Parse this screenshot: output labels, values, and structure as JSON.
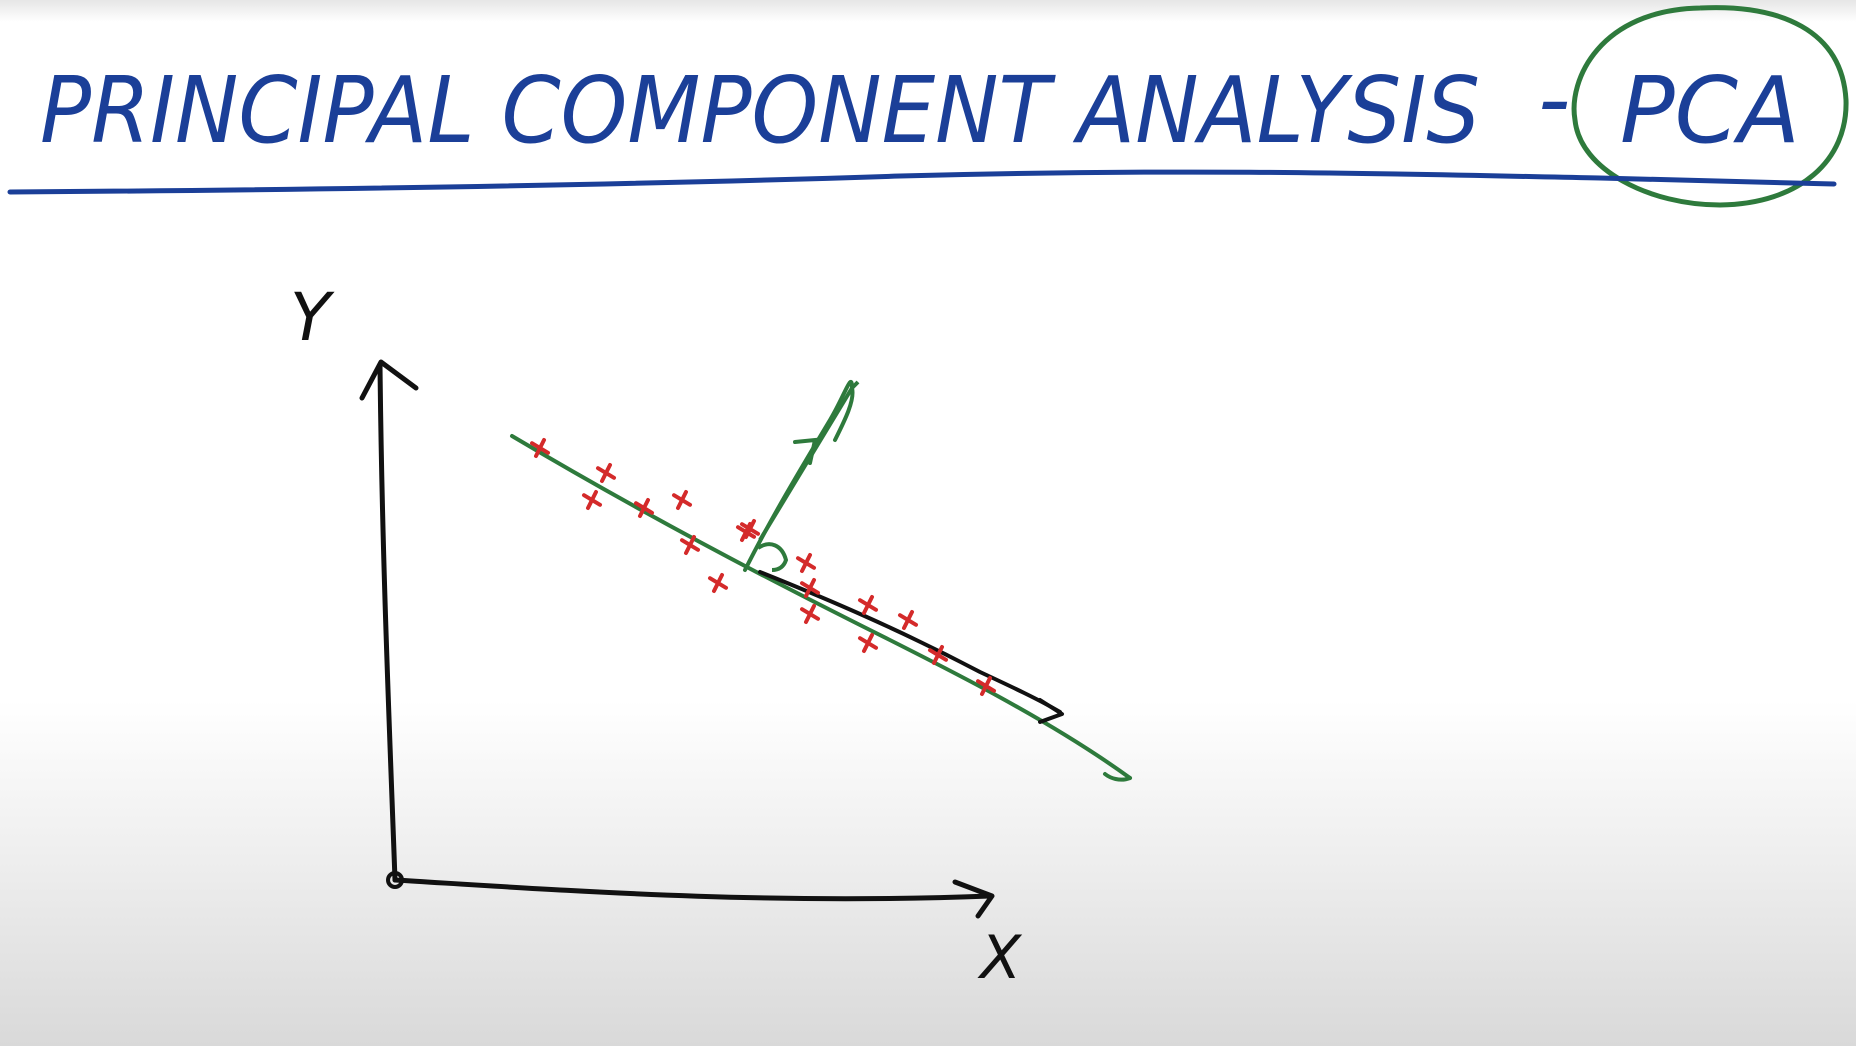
{
  "title": {
    "text": "PRINCIPAL COMPONENT ANALYSIS",
    "dash": "-",
    "acronym": "PCA"
  },
  "axes": {
    "x_label": "X",
    "y_label": "Y"
  },
  "colors": {
    "ink_blue": "#1b3f98",
    "ink_green": "#2e7a3c",
    "ink_black": "#111111",
    "ink_red": "#d42a2a"
  },
  "points": [
    [
      540,
      448
    ],
    [
      606,
      473
    ],
    [
      592,
      500
    ],
    [
      644,
      508
    ],
    [
      682,
      500
    ],
    [
      690,
      545
    ],
    [
      750,
      529
    ],
    [
      718,
      583
    ],
    [
      806,
      563
    ],
    [
      810,
      614
    ],
    [
      868,
      605
    ],
    [
      868,
      643
    ],
    [
      908,
      620
    ],
    [
      938,
      655
    ],
    [
      986,
      686
    ],
    [
      746,
      532
    ],
    [
      810,
      588
    ]
  ]
}
